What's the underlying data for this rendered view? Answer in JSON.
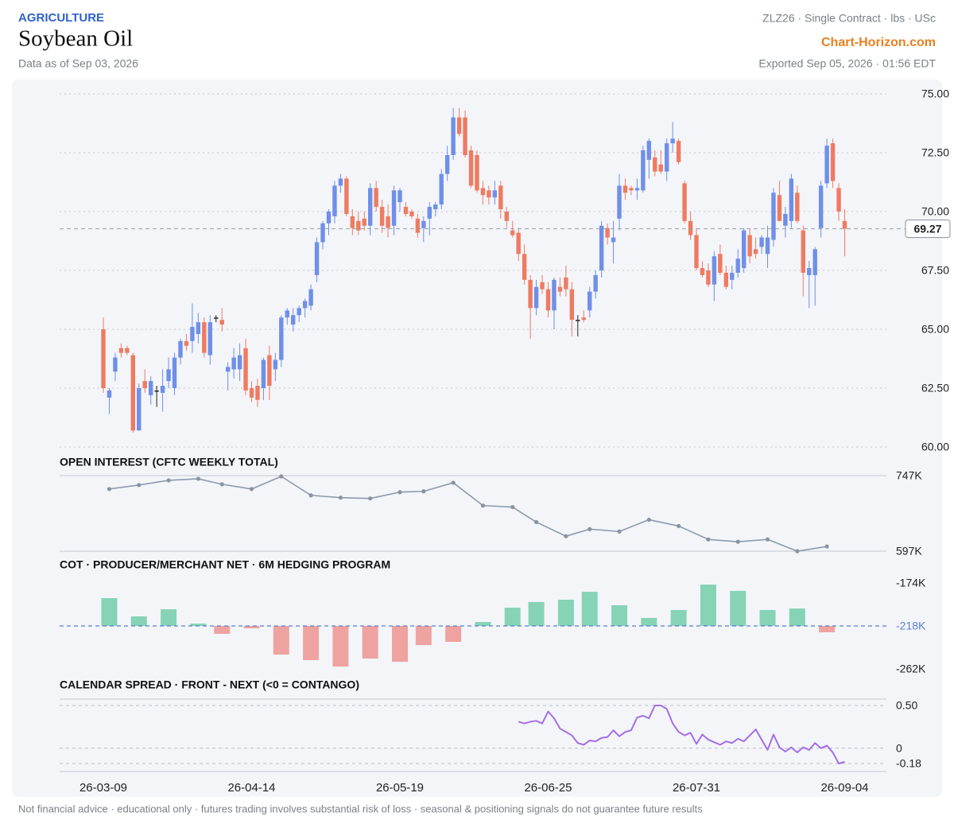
{
  "header": {
    "category": "AGRICULTURE",
    "title": "Soybean Oil",
    "data_as_of": "Data as of Sep 03, 2026",
    "contract": "ZLZ26 · Single Contract · lbs · USc",
    "brand": "Chart-Horizon.com",
    "exported": "Exported Sep 05, 2026 · 01:56 EDT"
  },
  "footer": "Not financial advice · educational only · futures trading involves substantial risk of loss · seasonal & positioning signals do not guarantee future results",
  "chart_data": [
    {
      "type": "candlestick",
      "x": [
        "26-03-09",
        "26-03-10",
        "26-03-11",
        "26-03-12",
        "26-03-13",
        "26-03-16",
        "26-03-17",
        "26-03-18",
        "26-03-19",
        "26-03-20",
        "26-03-23",
        "26-03-24",
        "26-03-25",
        "26-03-26",
        "26-03-27",
        "26-03-30",
        "26-03-31",
        "26-04-01",
        "26-04-02",
        "26-04-06",
        "26-04-07",
        "26-04-08",
        "26-04-09",
        "26-04-10",
        "26-04-13",
        "26-04-14",
        "26-04-15",
        "26-04-16",
        "26-04-17",
        "26-04-20",
        "26-04-21",
        "26-04-22",
        "26-04-23",
        "26-04-24",
        "26-04-27",
        "26-04-28",
        "26-04-29",
        "26-04-30",
        "26-05-01",
        "26-05-04",
        "26-05-05",
        "26-05-06",
        "26-05-07",
        "26-05-08",
        "26-05-11",
        "26-05-12",
        "26-05-13",
        "26-05-14",
        "26-05-15",
        "26-05-18",
        "26-05-19",
        "26-05-20",
        "26-05-21",
        "26-05-22",
        "26-05-26",
        "26-05-27",
        "26-05-28",
        "26-05-29",
        "26-06-01",
        "26-06-02",
        "26-06-03",
        "26-06-04",
        "26-06-05",
        "26-06-08",
        "26-06-09",
        "26-06-10",
        "26-06-11",
        "26-06-12",
        "26-06-15",
        "26-06-16",
        "26-06-17",
        "26-06-18",
        "26-06-22",
        "26-06-23",
        "26-06-24",
        "26-06-25",
        "26-06-26",
        "26-06-29",
        "26-06-30",
        "26-07-01",
        "26-07-02",
        "26-07-06",
        "26-07-07",
        "26-07-08",
        "26-07-09",
        "26-07-10",
        "26-07-13",
        "26-07-14",
        "26-07-15",
        "26-07-16",
        "26-07-17",
        "26-07-20",
        "26-07-21",
        "26-07-22",
        "26-07-23",
        "26-07-24",
        "26-07-27",
        "26-07-28",
        "26-07-29",
        "26-07-30",
        "26-07-31",
        "26-08-03",
        "26-08-04",
        "26-08-05",
        "26-08-06",
        "26-08-07",
        "26-08-10",
        "26-08-11",
        "26-08-12",
        "26-08-13",
        "26-08-14",
        "26-08-17",
        "26-08-18",
        "26-08-19",
        "26-08-20",
        "26-08-21",
        "26-08-24",
        "26-08-25",
        "26-08-26",
        "26-08-27",
        "26-08-28",
        "26-08-31",
        "26-09-01",
        "26-09-02",
        "26-09-03",
        "26-09-04"
      ],
      "ohlc": [
        [
          65.0,
          65.5,
          62.3,
          62.5
        ],
        [
          62.1,
          62.5,
          61.4,
          62.4
        ],
        [
          63.2,
          64.0,
          62.8,
          63.8
        ],
        [
          64.2,
          64.4,
          63.8,
          64.0
        ],
        [
          64.2,
          64.3,
          63.9,
          64.0
        ],
        [
          63.9,
          64.0,
          60.6,
          60.7
        ],
        [
          60.7,
          62.7,
          60.7,
          62.5
        ],
        [
          62.8,
          63.3,
          62.3,
          62.5
        ],
        [
          62.2,
          63.0,
          61.8,
          62.8
        ],
        [
          62.4,
          62.6,
          61.7,
          62.4
        ],
        [
          62.3,
          63.3,
          61.5,
          62.6
        ],
        [
          62.8,
          63.8,
          62.5,
          63.3
        ],
        [
          62.5,
          64.0,
          62.2,
          63.8
        ],
        [
          63.8,
          64.6,
          63.5,
          64.5
        ],
        [
          64.5,
          64.8,
          64.1,
          64.3
        ],
        [
          64.5,
          66.1,
          64.0,
          65.1
        ],
        [
          64.8,
          65.7,
          64.4,
          65.3
        ],
        [
          65.3,
          65.5,
          63.8,
          64.0
        ],
        [
          63.9,
          65.6,
          63.5,
          65.3
        ],
        [
          65.5,
          65.6,
          65.3,
          65.5
        ],
        [
          65.4,
          65.9,
          64.9,
          65.2
        ],
        [
          63.2,
          63.6,
          62.4,
          63.4
        ],
        [
          63.3,
          64.2,
          62.9,
          63.8
        ],
        [
          63.3,
          64.4,
          62.8,
          63.9
        ],
        [
          64.2,
          64.6,
          62.2,
          62.4
        ],
        [
          62.5,
          62.8,
          61.9,
          62.1
        ],
        [
          62.6,
          62.9,
          61.7,
          62.0
        ],
        [
          62.5,
          63.8,
          62.0,
          63.7
        ],
        [
          63.9,
          64.3,
          62.0,
          62.6
        ],
        [
          63.3,
          64.0,
          62.8,
          63.7
        ],
        [
          63.7,
          65.6,
          63.4,
          65.5
        ],
        [
          65.5,
          65.9,
          65.2,
          65.8
        ],
        [
          65.2,
          65.9,
          64.9,
          65.6
        ],
        [
          65.6,
          66.0,
          65.3,
          65.9
        ],
        [
          65.9,
          66.3,
          65.5,
          66.2
        ],
        [
          66.0,
          66.9,
          65.8,
          66.7
        ],
        [
          67.3,
          68.9,
          67.0,
          68.7
        ],
        [
          68.7,
          69.6,
          68.4,
          69.5
        ],
        [
          69.5,
          70.1,
          69.0,
          70.0
        ],
        [
          69.8,
          71.3,
          69.5,
          71.1
        ],
        [
          71.1,
          71.6,
          70.8,
          71.4
        ],
        [
          71.4,
          71.5,
          69.8,
          69.9
        ],
        [
          69.8,
          70.1,
          69.0,
          69.3
        ],
        [
          69.6,
          70.0,
          69.0,
          69.2
        ],
        [
          69.7,
          70.0,
          69.2,
          69.4
        ],
        [
          69.4,
          71.2,
          69.0,
          71.0
        ],
        [
          71.0,
          71.3,
          70.0,
          70.2
        ],
        [
          70.2,
          70.5,
          69.1,
          69.4
        ],
        [
          69.8,
          70.3,
          68.9,
          69.3
        ],
        [
          69.4,
          71.1,
          69.0,
          70.9
        ],
        [
          70.4,
          71.0,
          70.0,
          70.9
        ],
        [
          70.2,
          70.4,
          69.8,
          69.9
        ],
        [
          70.0,
          70.1,
          69.7,
          69.8
        ],
        [
          69.7,
          69.9,
          68.9,
          69.1
        ],
        [
          69.3,
          69.8,
          68.7,
          69.6
        ],
        [
          69.7,
          70.4,
          69.0,
          70.2
        ],
        [
          70.1,
          70.4,
          69.8,
          70.3
        ],
        [
          70.3,
          71.8,
          70.1,
          71.6
        ],
        [
          71.6,
          72.8,
          71.3,
          72.4
        ],
        [
          72.4,
          74.4,
          72.2,
          74.0
        ],
        [
          74.0,
          74.4,
          73.2,
          73.3
        ],
        [
          74.0,
          74.3,
          72.3,
          72.4
        ],
        [
          72.6,
          72.8,
          71.0,
          71.1
        ],
        [
          72.4,
          72.6,
          70.8,
          70.9
        ],
        [
          71.0,
          71.3,
          70.3,
          70.7
        ],
        [
          70.9,
          71.1,
          70.3,
          70.6
        ],
        [
          70.6,
          71.3,
          70.3,
          70.9
        ],
        [
          71.1,
          71.3,
          69.7,
          70.1
        ],
        [
          70.0,
          70.2,
          69.3,
          69.6
        ],
        [
          69.2,
          69.6,
          68.9,
          69.0
        ],
        [
          69.1,
          69.3,
          67.9,
          68.2
        ],
        [
          68.2,
          68.6,
          66.9,
          67.1
        ],
        [
          67.1,
          67.3,
          64.6,
          65.9
        ],
        [
          65.9,
          67.1,
          65.6,
          66.8
        ],
        [
          67.0,
          67.3,
          66.5,
          66.7
        ],
        [
          66.7,
          67.0,
          65.5,
          65.8
        ],
        [
          65.8,
          67.2,
          65.0,
          67.1
        ],
        [
          66.8,
          67.2,
          66.4,
          66.6
        ],
        [
          67.2,
          67.7,
          66.4,
          66.7
        ],
        [
          66.7,
          67.0,
          64.7,
          65.4
        ],
        [
          65.4,
          65.6,
          64.7,
          65.4
        ],
        [
          65.5,
          65.8,
          65.3,
          65.4
        ],
        [
          65.8,
          66.8,
          65.5,
          66.6
        ],
        [
          66.6,
          67.5,
          66.3,
          67.3
        ],
        [
          67.5,
          69.6,
          67.2,
          69.4
        ],
        [
          69.3,
          69.5,
          68.6,
          68.9
        ],
        [
          68.7,
          69.6,
          67.8,
          68.9
        ],
        [
          69.7,
          71.6,
          69.2,
          71.1
        ],
        [
          71.1,
          71.4,
          70.5,
          70.8
        ],
        [
          71.0,
          71.1,
          70.7,
          70.9
        ],
        [
          70.9,
          71.4,
          70.5,
          71.0
        ],
        [
          70.9,
          72.8,
          70.8,
          72.6
        ],
        [
          72.2,
          73.1,
          71.4,
          73.0
        ],
        [
          72.3,
          72.6,
          71.5,
          71.7
        ],
        [
          72.0,
          72.6,
          71.6,
          71.7
        ],
        [
          71.7,
          73.1,
          71.3,
          72.9
        ],
        [
          72.9,
          73.8,
          72.5,
          73.1
        ],
        [
          73.0,
          73.1,
          72.0,
          72.1
        ],
        [
          71.2,
          71.3,
          69.5,
          69.6
        ],
        [
          69.6,
          70.0,
          68.8,
          69.0
        ],
        [
          69.0,
          69.3,
          67.5,
          67.6
        ],
        [
          67.6,
          67.9,
          67.2,
          67.3
        ],
        [
          67.5,
          67.8,
          66.8,
          66.9
        ],
        [
          66.9,
          68.3,
          66.2,
          68.1
        ],
        [
          68.2,
          68.6,
          67.3,
          67.4
        ],
        [
          67.4,
          67.7,
          66.7,
          66.8
        ],
        [
          67.1,
          67.7,
          66.7,
          67.4
        ],
        [
          67.4,
          68.4,
          67.2,
          68.0
        ],
        [
          67.6,
          69.3,
          67.4,
          69.2
        ],
        [
          69.0,
          69.3,
          67.8,
          68.1
        ],
        [
          68.4,
          68.9,
          68.0,
          68.2
        ],
        [
          68.5,
          69.0,
          68.2,
          68.9
        ],
        [
          68.2,
          69.4,
          67.6,
          68.9
        ],
        [
          68.8,
          71.0,
          68.5,
          70.8
        ],
        [
          70.7,
          71.3,
          69.6,
          69.6
        ],
        [
          69.4,
          70.2,
          68.9,
          69.9
        ],
        [
          69.6,
          71.6,
          69.3,
          71.4
        ],
        [
          70.8,
          71.1,
          69.5,
          69.6
        ],
        [
          69.2,
          69.4,
          66.4,
          67.4
        ],
        [
          67.3,
          67.9,
          65.9,
          67.6
        ],
        [
          67.3,
          68.5,
          66.0,
          68.4
        ],
        [
          69.3,
          71.3,
          68.9,
          71.1
        ],
        [
          71.2,
          73.1,
          71.0,
          72.8
        ],
        [
          72.9,
          73.1,
          71.0,
          71.3
        ],
        [
          71.0,
          71.2,
          69.6,
          70.0
        ],
        [
          69.6,
          70.1,
          68.1,
          69.27
        ]
      ],
      "up_color": "#6f8fe8",
      "down_color": "#ee7b61",
      "flat_color": "#222222",
      "ylim": [
        60,
        75
      ],
      "yticks": [
        {
          "value": 75,
          "label": "75.00"
        },
        {
          "value": 72.5,
          "label": "72.50"
        },
        {
          "value": 70,
          "label": "70.00"
        },
        {
          "value": 67.5,
          "label": "67.50"
        },
        {
          "value": 65,
          "label": "65.00"
        },
        {
          "value": 62.5,
          "label": "62.50"
        },
        {
          "value": 60,
          "label": "60.00"
        }
      ],
      "grid": true,
      "last_price": 69.27,
      "xticks": [
        "26-03-09",
        "26-04-14",
        "26-05-19",
        "26-06-25",
        "26-07-31",
        "26-09-04"
      ]
    },
    {
      "type": "line",
      "title": "OPEN INTEREST (CFTC WEEKLY TOTAL)",
      "x": [
        "26-03-10",
        "26-03-17",
        "26-03-24",
        "26-03-31",
        "26-04-07",
        "26-04-14",
        "26-04-21",
        "26-04-28",
        "26-05-05",
        "26-05-12",
        "26-05-19",
        "26-05-26",
        "26-06-02",
        "26-06-09",
        "26-06-16",
        "26-06-23",
        "26-06-30",
        "26-07-07",
        "26-07-14",
        "26-07-21",
        "26-07-28",
        "26-08-04",
        "26-08-11",
        "26-08-18",
        "26-08-25",
        "26-09-01"
      ],
      "values": [
        720400,
        728300,
        737600,
        740800,
        729800,
        720400,
        745400,
        707900,
        703300,
        701700,
        714200,
        715800,
        732900,
        687600,
        684500,
        654800,
        626700,
        640800,
        636100,
        659500,
        647000,
        620400,
        615700,
        620400,
        597000,
        606400
      ],
      "color": "#8e9aab",
      "markers": true,
      "ylim": [
        597000,
        747000
      ],
      "yticks": [
        {
          "value": 747000,
          "label": "747K"
        },
        {
          "value": 597000,
          "label": "597K"
        }
      ],
      "grid": true
    },
    {
      "type": "bar",
      "title": "COT · PRODUCER/MERCHANT NET · 6M HEDGING PROGRAM",
      "x": [
        "26-03-10",
        "26-03-17",
        "26-03-24",
        "26-03-31",
        "26-04-07",
        "26-04-14",
        "26-04-21",
        "26-04-28",
        "26-05-05",
        "26-05-12",
        "26-05-19",
        "26-05-26",
        "26-06-02",
        "26-06-09",
        "26-06-16",
        "26-06-23",
        "26-06-30",
        "26-07-07",
        "26-07-14",
        "26-07-21",
        "26-07-28",
        "26-08-04",
        "26-08-11",
        "26-08-18",
        "26-08-25",
        "26-09-01"
      ],
      "values": [
        -189500,
        -208200,
        -200900,
        -215600,
        -226100,
        -220400,
        -247300,
        -253000,
        -259600,
        -251400,
        -254700,
        -237600,
        -234300,
        -213900,
        -199300,
        -193500,
        -191100,
        -183000,
        -196800,
        -209800,
        -201700,
        -175600,
        -182100,
        -201700,
        -200100,
        -224500
      ],
      "up_color": "#86d3b6",
      "down_color": "#eea3a1",
      "reference_line": {
        "value": -218000,
        "label": "-218K",
        "color": "#5b7fd6"
      },
      "ylim": [
        -262000,
        -174000
      ],
      "yticks": [
        {
          "value": -174000,
          "label": "-174K"
        },
        {
          "value": -262000,
          "label": "-262K"
        }
      ]
    },
    {
      "type": "line",
      "title": "CALENDAR SPREAD · FRONT - NEXT (<0 = CONTANGO)",
      "x": [
        "26-06-17",
        "26-06-18",
        "26-06-22",
        "26-06-23",
        "26-06-24",
        "26-06-25",
        "26-06-26",
        "26-06-29",
        "26-06-30",
        "26-07-01",
        "26-07-02",
        "26-07-06",
        "26-07-07",
        "26-07-08",
        "26-07-09",
        "26-07-10",
        "26-07-13",
        "26-07-14",
        "26-07-15",
        "26-07-16",
        "26-07-17",
        "26-07-20",
        "26-07-21",
        "26-07-22",
        "26-07-23",
        "26-07-24",
        "26-07-27",
        "26-07-28",
        "26-07-29",
        "26-07-30",
        "26-07-31",
        "26-08-03",
        "26-08-04",
        "26-08-05",
        "26-08-06",
        "26-08-07",
        "26-08-10",
        "26-08-11",
        "26-08-12",
        "26-08-13",
        "26-08-14",
        "26-08-17",
        "26-08-18",
        "26-08-19",
        "26-08-20",
        "26-08-21",
        "26-08-24",
        "26-08-25",
        "26-08-26",
        "26-08-27",
        "26-08-28",
        "26-08-31",
        "26-09-01",
        "26-09-02",
        "26-09-03",
        "26-09-04"
      ],
      "values": [
        0.31,
        0.29,
        0.31,
        0.32,
        0.29,
        0.43,
        0.35,
        0.23,
        0.19,
        0.15,
        0.06,
        0.04,
        0.09,
        0.08,
        0.12,
        0.13,
        0.21,
        0.14,
        0.19,
        0.21,
        0.36,
        0.38,
        0.35,
        0.5,
        0.5,
        0.46,
        0.29,
        0.19,
        0.15,
        0.18,
        0.05,
        0.16,
        0.1,
        0.07,
        0.04,
        0.08,
        0.06,
        0.11,
        0.08,
        0.15,
        0.22,
        0.1,
        -0.02,
        0.16,
        0.01,
        -0.04,
        0.01,
        -0.05,
        0.01,
        -0.02,
        0.06,
        0,
        0.03,
        -0.05,
        -0.18,
        -0.16
      ],
      "color": "#a46ee6",
      "markers": false,
      "ylim": [
        -0.18,
        0.5
      ],
      "yticks": [
        {
          "value": 0.5,
          "label": "0.50"
        },
        0,
        -0.18
      ],
      "grid": true
    }
  ]
}
